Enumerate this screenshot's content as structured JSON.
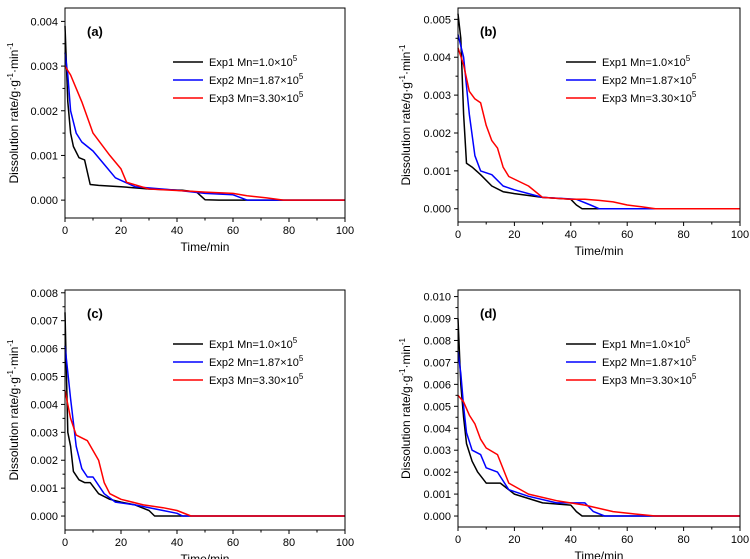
{
  "chart_data": [
    {
      "type": "line",
      "panel_label": "(a)",
      "xlabel": "Time/min",
      "ylabel": "Dissolution rate/g·g",
      "ylabel_sup1": "-1",
      "ylabel_mid": "·min",
      "ylabel_sup2": "-1",
      "xlim": [
        0,
        100
      ],
      "ylim": [
        -0.0004,
        0.0043
      ],
      "x_ticks": [
        "0",
        "20",
        "40",
        "60",
        "80",
        "100"
      ],
      "x_tick_values": [
        0,
        20,
        40,
        60,
        80,
        100
      ],
      "y_ticks": [
        "0.000",
        "0.001",
        "0.002",
        "0.003",
        "0.004"
      ],
      "y_tick_values": [
        0,
        0.001,
        0.002,
        0.003,
        0.004
      ],
      "legend_position": "top-right",
      "series": [
        {
          "name": "Exp1 Mn=1.0×10",
          "exp": "5",
          "color": "#000000",
          "x": [
            0,
            1,
            2,
            3,
            5,
            7,
            9,
            12,
            20,
            30,
            42,
            47,
            50,
            55,
            100
          ],
          "y": [
            0.0039,
            0.0022,
            0.0015,
            0.0012,
            0.00095,
            0.0009,
            0.00035,
            0.00033,
            0.0003,
            0.00025,
            0.00022,
            0.00018,
            1e-05,
            0,
            0
          ]
        },
        {
          "name": "Exp2 Mn=1.87×10",
          "exp": "5",
          "color": "#0000ff",
          "x": [
            0,
            1,
            2,
            4,
            6,
            10,
            14,
            18,
            25,
            40,
            50,
            60,
            63,
            65,
            100
          ],
          "y": [
            0.0033,
            0.0028,
            0.002,
            0.0015,
            0.0013,
            0.0011,
            0.0008,
            0.0005,
            0.0003,
            0.00022,
            0.00015,
            0.00012,
            5e-05,
            0,
            0
          ]
        },
        {
          "name": "Exp3 Mn=3.30×10",
          "exp": "5",
          "color": "#ff0000",
          "x": [
            0,
            2,
            4,
            6,
            10,
            16,
            20,
            22,
            30,
            45,
            50,
            60,
            65,
            72,
            78,
            100
          ],
          "y": [
            0.003,
            0.0028,
            0.0025,
            0.0022,
            0.0015,
            0.001,
            0.0007,
            0.0004,
            0.00025,
            0.0002,
            0.00018,
            0.00015,
            0.0001,
            5e-05,
            0,
            0
          ]
        }
      ]
    },
    {
      "type": "line",
      "panel_label": "(b)",
      "xlabel": "Time/min",
      "ylabel": "Dissolution rate/g·g",
      "ylabel_sup1": "-1",
      "ylabel_mid": "·min",
      "ylabel_sup2": "-1",
      "xlim": [
        0,
        100
      ],
      "ylim": [
        -0.00035,
        0.0053
      ],
      "x_ticks": [
        "0",
        "20",
        "40",
        "60",
        "80",
        "100"
      ],
      "x_tick_values": [
        0,
        20,
        40,
        60,
        80,
        100
      ],
      "y_ticks": [
        "0.000",
        "0.001",
        "0.002",
        "0.003",
        "0.004",
        "0.005"
      ],
      "y_tick_values": [
        0,
        0.001,
        0.002,
        0.003,
        0.004,
        0.005
      ],
      "legend_position": "top-right",
      "series": [
        {
          "name": "Exp1 Mn=1.0×10",
          "exp": "5",
          "color": "#000000",
          "x": [
            0,
            1,
            2,
            3,
            5,
            8,
            12,
            16,
            20,
            30,
            40,
            42,
            44,
            100
          ],
          "y": [
            0.00515,
            0.0045,
            0.0025,
            0.0012,
            0.0011,
            0.0009,
            0.0006,
            0.00045,
            0.0004,
            0.0003,
            0.00025,
            0.0001,
            0,
            0
          ]
        },
        {
          "name": "Exp2 Mn=1.87×10",
          "exp": "5",
          "color": "#0000ff",
          "x": [
            0,
            2,
            4,
            6,
            8,
            12,
            16,
            20,
            30,
            42,
            47,
            50,
            100
          ],
          "y": [
            0.0046,
            0.004,
            0.0025,
            0.0014,
            0.001,
            0.0009,
            0.0006,
            0.0005,
            0.0003,
            0.00025,
            0.0001,
            0,
            0
          ]
        },
        {
          "name": "Exp3 Mn=3.30×10",
          "exp": "5",
          "color": "#ff0000",
          "x": [
            0,
            2,
            4,
            6,
            8,
            10,
            12,
            14,
            16,
            18,
            25,
            30,
            40,
            45,
            50,
            55,
            60,
            65,
            70,
            100
          ],
          "y": [
            0.00425,
            0.0038,
            0.0031,
            0.0029,
            0.0028,
            0.0022,
            0.0018,
            0.0016,
            0.0011,
            0.00085,
            0.0006,
            0.0003,
            0.00025,
            0.00025,
            0.00022,
            0.00018,
            0.0001,
            5e-05,
            0,
            0
          ]
        }
      ]
    },
    {
      "type": "line",
      "panel_label": "(c)",
      "xlabel": "Time/min",
      "ylabel": "Dissolution rate/g·g",
      "ylabel_sup1": "-1",
      "ylabel_mid": "·min",
      "ylabel_sup2": "-1",
      "xlim": [
        0,
        100
      ],
      "ylim": [
        -0.0005,
        0.0081
      ],
      "x_ticks": [
        "0",
        "20",
        "40",
        "60",
        "80",
        "100"
      ],
      "x_tick_values": [
        0,
        20,
        40,
        60,
        80,
        100
      ],
      "y_ticks": [
        "0.000",
        "0.001",
        "0.002",
        "0.003",
        "0.004",
        "0.005",
        "0.006",
        "0.007",
        "0.008"
      ],
      "y_tick_values": [
        0,
        0.001,
        0.002,
        0.003,
        0.004,
        0.005,
        0.006,
        0.007,
        0.008
      ],
      "legend_position": "top-right",
      "series": [
        {
          "name": "Exp1 Mn=1.0×10",
          "exp": "5",
          "color": "#000000",
          "x": [
            0,
            1,
            2,
            3,
            5,
            7,
            9,
            12,
            16,
            20,
            25,
            30,
            32,
            34,
            100
          ],
          "y": [
            0.0073,
            0.003,
            0.0025,
            0.0016,
            0.0013,
            0.0012,
            0.0012,
            0.0008,
            0.0006,
            0.0005,
            0.0004,
            0.0002,
            0,
            0,
            0
          ]
        },
        {
          "name": "Exp2 Mn=1.87×10",
          "exp": "5",
          "color": "#0000ff",
          "x": [
            0,
            2,
            4,
            6,
            8,
            10,
            14,
            18,
            25,
            35,
            40,
            42,
            100
          ],
          "y": [
            0.0061,
            0.0042,
            0.0025,
            0.0017,
            0.0014,
            0.0014,
            0.0008,
            0.0005,
            0.0004,
            0.0002,
            0.0001,
            0,
            0
          ]
        },
        {
          "name": "Exp3 Mn=3.30×10",
          "exp": "5",
          "color": "#ff0000",
          "x": [
            0,
            2,
            4,
            8,
            12,
            14,
            16,
            20,
            28,
            35,
            40,
            45,
            100
          ],
          "y": [
            0.0045,
            0.0035,
            0.0029,
            0.0027,
            0.002,
            0.0012,
            0.0008,
            0.0006,
            0.0004,
            0.0003,
            0.0002,
            0,
            0
          ]
        }
      ]
    },
    {
      "type": "line",
      "panel_label": "(d)",
      "xlabel": "Time/min",
      "ylabel": "Dissolution rate/g·g",
      "ylabel_sup1": "-1",
      "ylabel_mid": "·min",
      "ylabel_sup2": "-1",
      "xlim": [
        0,
        100
      ],
      "ylim": [
        -0.0005,
        0.0103
      ],
      "x_ticks": [
        "0",
        "20",
        "40",
        "60",
        "80",
        "100"
      ],
      "x_tick_values": [
        0,
        20,
        40,
        60,
        80,
        100
      ],
      "y_ticks": [
        "0.000",
        "0.001",
        "0.002",
        "0.003",
        "0.004",
        "0.005",
        "0.006",
        "0.007",
        "0.008",
        "0.009",
        "0.010"
      ],
      "y_tick_values": [
        0,
        0.001,
        0.002,
        0.003,
        0.004,
        0.005,
        0.006,
        0.007,
        0.008,
        0.009,
        0.01
      ],
      "legend_position": "top-right",
      "series": [
        {
          "name": "Exp1 Mn=1.0×10",
          "exp": "5",
          "color": "#000000",
          "x": [
            0,
            1,
            2,
            3,
            5,
            7,
            10,
            15,
            20,
            30,
            40,
            42,
            44,
            100
          ],
          "y": [
            0.009,
            0.006,
            0.0045,
            0.0033,
            0.0025,
            0.002,
            0.0015,
            0.0015,
            0.001,
            0.0006,
            0.0005,
            0.0002,
            0,
            0
          ]
        },
        {
          "name": "Exp2 Mn=1.87×10",
          "exp": "5",
          "color": "#0000ff",
          "x": [
            0,
            1,
            2,
            3,
            5,
            8,
            10,
            14,
            18,
            25,
            35,
            45,
            48,
            52,
            100
          ],
          "y": [
            0.0075,
            0.0065,
            0.005,
            0.0038,
            0.003,
            0.0028,
            0.0022,
            0.002,
            0.0012,
            0.0009,
            0.0006,
            0.0006,
            0.0002,
            0,
            0
          ]
        },
        {
          "name": "Exp3 Mn=3.30×10",
          "exp": "5",
          "color": "#ff0000",
          "x": [
            0,
            2,
            4,
            6,
            8,
            10,
            14,
            18,
            25,
            35,
            45,
            55,
            62,
            70,
            100
          ],
          "y": [
            0.0055,
            0.0052,
            0.0046,
            0.0042,
            0.0035,
            0.0031,
            0.0028,
            0.0015,
            0.001,
            0.0007,
            0.0005,
            0.0002,
            0.0001,
            0,
            0
          ]
        }
      ]
    }
  ]
}
